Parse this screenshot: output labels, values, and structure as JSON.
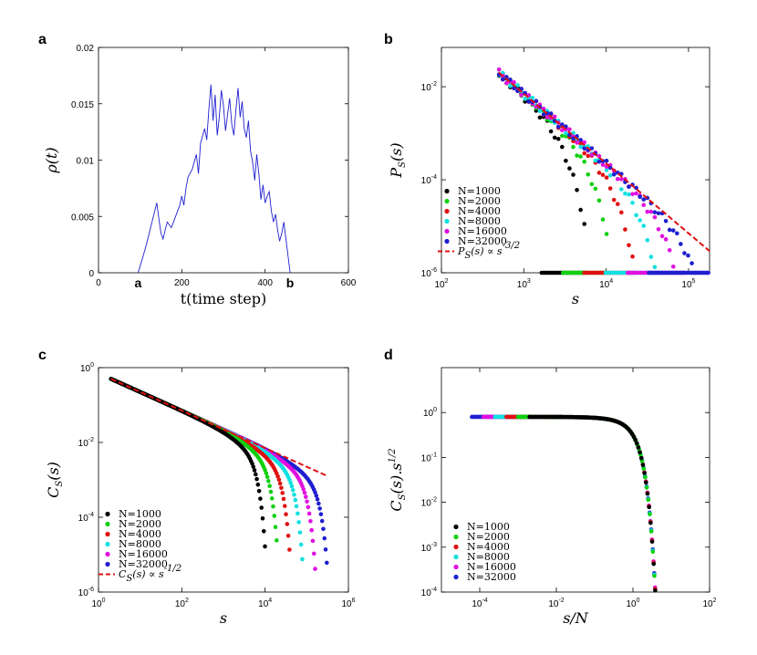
{
  "colors": {
    "axes": "#000000",
    "trace": "#1f1fd0",
    "fit": "#e01010"
  },
  "chart_data": [
    {
      "panel": "a",
      "type": "line",
      "xlabel": "t(time step)",
      "ylabel": "ρ(t)",
      "xlim": [
        0,
        600
      ],
      "ylim": [
        0,
        0.02
      ],
      "x_ticks": [
        "0",
        "200",
        "400",
        "600"
      ],
      "y_ticks": [
        "0",
        "0.005",
        "0.01",
        "0.015",
        "0.02"
      ],
      "endpoints": {
        "start_label": "a",
        "end_label": "b",
        "start_t": 95,
        "end_t": 460
      },
      "series": [
        {
          "color": "#1f1fd0",
          "x": [
            95,
            105,
            115,
            125,
            135,
            140,
            145,
            150,
            155,
            160,
            165,
            175,
            185,
            195,
            200,
            205,
            210,
            215,
            225,
            235,
            240,
            245,
            255,
            260,
            265,
            270,
            275,
            280,
            285,
            290,
            295,
            300,
            305,
            310,
            315,
            320,
            325,
            330,
            335,
            340,
            345,
            350,
            355,
            360,
            365,
            370,
            375,
            380,
            385,
            390,
            395,
            400,
            405,
            410,
            415,
            420,
            425,
            430,
            435,
            440,
            445,
            450,
            455,
            460
          ],
          "y": [
            0,
            0.0012,
            0.0025,
            0.004,
            0.0055,
            0.0062,
            0.0048,
            0.0035,
            0.003,
            0.0038,
            0.0045,
            0.004,
            0.005,
            0.006,
            0.0068,
            0.006,
            0.0075,
            0.0085,
            0.0092,
            0.0105,
            0.0088,
            0.0115,
            0.0128,
            0.0118,
            0.0145,
            0.0167,
            0.0135,
            0.0158,
            0.0122,
            0.0138,
            0.0162,
            0.0148,
            0.0126,
            0.0141,
            0.0155,
            0.0132,
            0.0122,
            0.0145,
            0.0164,
            0.0138,
            0.0152,
            0.0128,
            0.012,
            0.0135,
            0.0108,
            0.0098,
            0.0082,
            0.0105,
            0.0088,
            0.0065,
            0.0078,
            0.0062,
            0.0068,
            0.0072,
            0.0055,
            0.0045,
            0.0052,
            0.0038,
            0.0028,
            0.0035,
            0.0045,
            0.003,
            0.0015,
            0
          ]
        }
      ]
    },
    {
      "panel": "b",
      "type": "scatter",
      "xscale": "log",
      "yscale": "log",
      "xlabel": "s",
      "ylabel": "P_S(s)",
      "xlim": [
        100,
        180000
      ],
      "ylim": [
        1e-06,
        0.07
      ],
      "x_ticks": [
        "10^2",
        "10^3",
        "10^4",
        "10^5"
      ],
      "y_ticks": [
        "10^-6",
        "10^-4",
        "10^-2"
      ],
      "fit_line": {
        "label": "P_S(s) ∝ s^{-3/2}",
        "color": "#e01010",
        "prefactor": 0.02,
        "s0": 500,
        "exponent": -1.5
      },
      "series": [
        {
          "name": "N=1000",
          "color": "#000000",
          "cutoff": 5500
        },
        {
          "name": "N=2000",
          "color": "#10d010",
          "cutoff": 11000
        },
        {
          "name": "N=4000",
          "color": "#e01010",
          "cutoff": 22000
        },
        {
          "name": "N=8000",
          "color": "#10e0e0",
          "cutoff": 44000
        },
        {
          "name": "N=16000",
          "color": "#e010e0",
          "cutoff": 90000
        },
        {
          "name": "N=32000",
          "color": "#1f1fd0",
          "cutoff": 180000
        }
      ]
    },
    {
      "panel": "c",
      "type": "scatter",
      "xscale": "log",
      "yscale": "log",
      "xlabel": "s",
      "ylabel": "C_S(s)",
      "xlim": [
        1,
        1000000
      ],
      "ylim": [
        1e-06,
        1
      ],
      "x_ticks": [
        "10^0",
        "10^2",
        "10^4",
        "10^6"
      ],
      "y_ticks": [
        "10^-6",
        "10^-4",
        "10^-2",
        "10^0"
      ],
      "fit_line": {
        "label": "C_S(s) ∝ s^{-1/2}",
        "color": "#e01010",
        "prefactor": 0.5,
        "s0": 2,
        "exponent": -0.5
      },
      "series": [
        {
          "name": "N=1000",
          "color": "#000000",
          "cutoff": 10000
        },
        {
          "name": "N=2000",
          "color": "#10d010",
          "cutoff": 20000
        },
        {
          "name": "N=4000",
          "color": "#e01010",
          "cutoff": 40000
        },
        {
          "name": "N=8000",
          "color": "#10e0e0",
          "cutoff": 80000
        },
        {
          "name": "N=16000",
          "color": "#e010e0",
          "cutoff": 160000
        },
        {
          "name": "N=32000",
          "color": "#1f1fd0",
          "cutoff": 320000
        }
      ]
    },
    {
      "panel": "d",
      "type": "scatter",
      "xscale": "log",
      "yscale": "log",
      "xlabel": "s/N",
      "ylabel": "C_S(s).s^{1/2}",
      "xlim": [
        1e-05,
        100
      ],
      "ylim": [
        0.0001,
        10
      ],
      "x_ticks": [
        "10^-4",
        "10^-2",
        "10^0",
        "10^2"
      ],
      "y_ticks": [
        "10^-4",
        "10^-3",
        "10^-2",
        "10^-1",
        "10^0"
      ],
      "plateau": 0.8,
      "series": [
        {
          "name": "N=1000",
          "color": "#000000"
        },
        {
          "name": "N=2000",
          "color": "#10d010"
        },
        {
          "name": "N=4000",
          "color": "#e01010"
        },
        {
          "name": "N=8000",
          "color": "#10e0e0"
        },
        {
          "name": "N=16000",
          "color": "#e010e0"
        },
        {
          "name": "N=32000",
          "color": "#1f1fd0"
        }
      ]
    }
  ]
}
